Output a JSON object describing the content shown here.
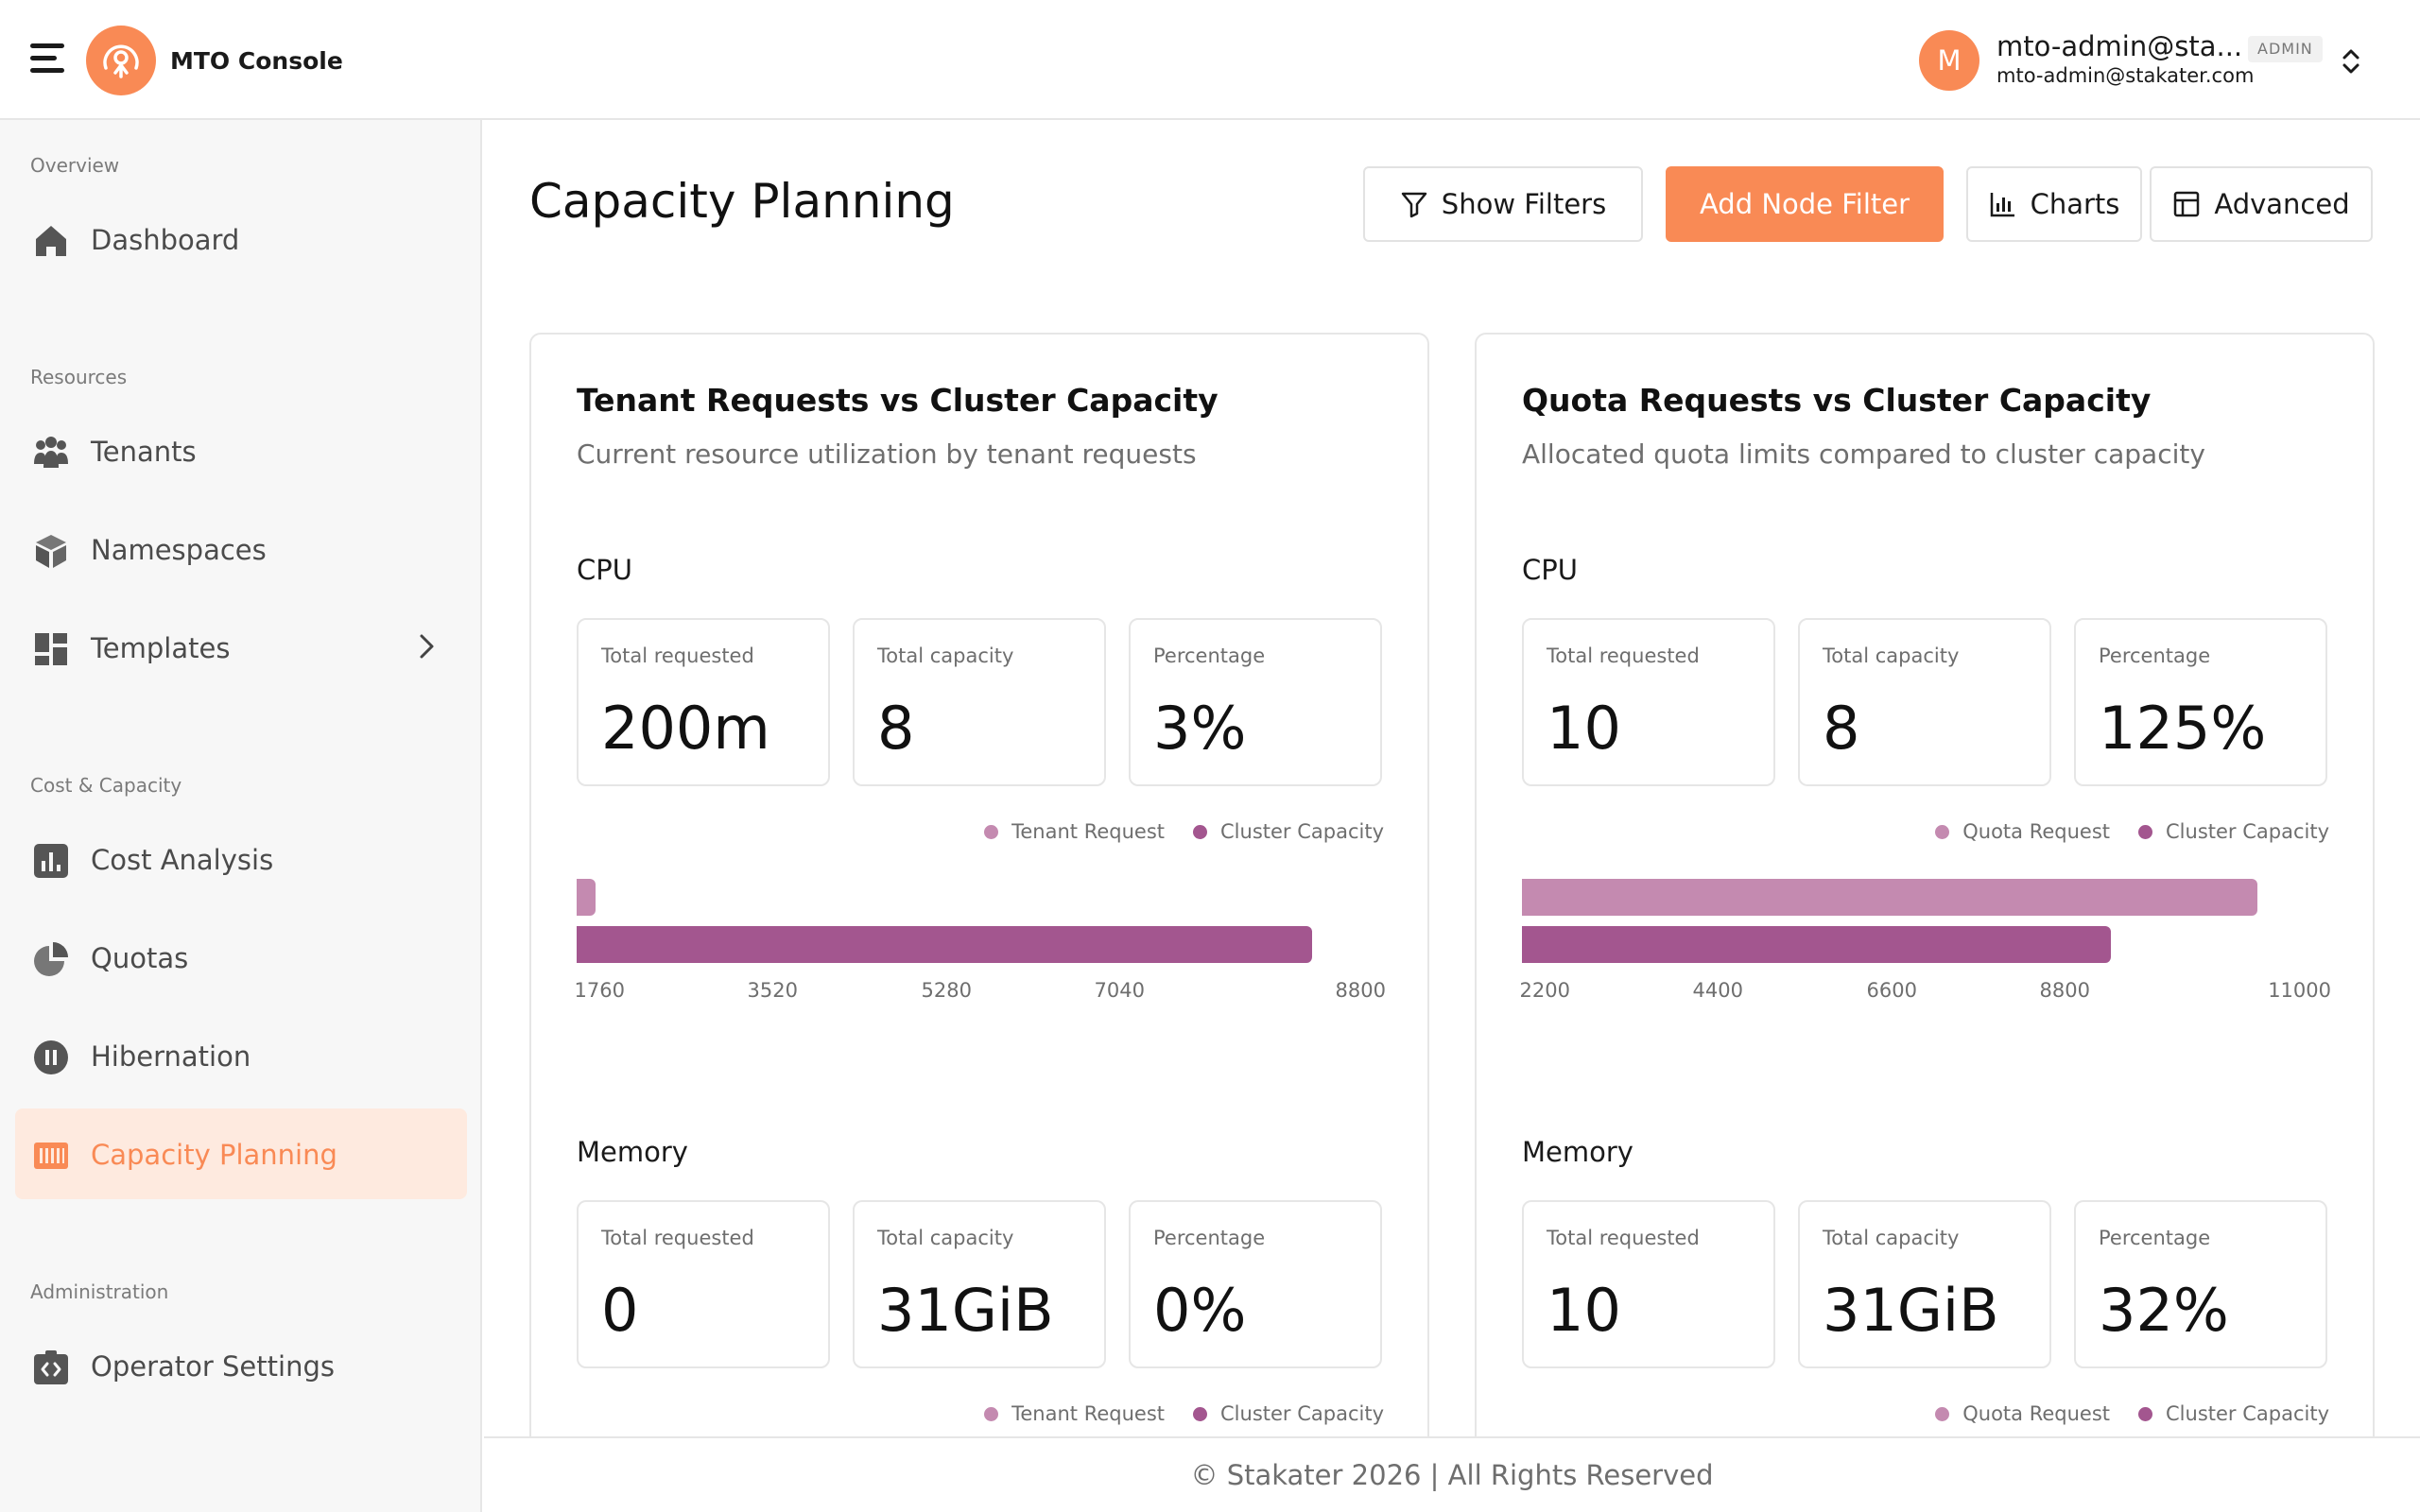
{
  "header": {
    "app_title": "MTO Console",
    "user": {
      "initial": "M",
      "name": "mto-admin@sta...",
      "role": "ADMIN",
      "email": "mto-admin@stakater.com"
    }
  },
  "sidebar": {
    "sections": [
      {
        "label": "Overview",
        "items": [
          {
            "label": "Dashboard",
            "icon": "home-icon"
          }
        ]
      },
      {
        "label": "Resources",
        "items": [
          {
            "label": "Tenants",
            "icon": "users-icon"
          },
          {
            "label": "Namespaces",
            "icon": "cube-icon"
          },
          {
            "label": "Templates",
            "icon": "template-icon",
            "expandable": true
          }
        ]
      },
      {
        "label": "Cost & Capacity",
        "items": [
          {
            "label": "Cost Analysis",
            "icon": "bar-chart-icon"
          },
          {
            "label": "Quotas",
            "icon": "pie-chart-icon"
          },
          {
            "label": "Hibernation",
            "icon": "pause-icon"
          },
          {
            "label": "Capacity Planning",
            "icon": "capacity-icon",
            "active": true
          }
        ]
      },
      {
        "label": "Administration",
        "items": [
          {
            "label": "Operator Settings",
            "icon": "code-settings-icon"
          }
        ]
      }
    ]
  },
  "main": {
    "title": "Capacity Planning",
    "toolbar": {
      "show_filters": "Show Filters",
      "add_node_filter": "Add Node Filter",
      "charts": "Charts",
      "advanced": "Advanced"
    }
  },
  "colors": {
    "accent": "#f98a55",
    "request": "#c48ab0",
    "capacity": "#a3568f"
  },
  "cards": [
    {
      "title": "Tenant Requests vs Cluster Capacity",
      "subtitle": "Current resource utilization by tenant requests",
      "sections": [
        {
          "label": "CPU",
          "stats": [
            {
              "label": "Total requested",
              "value": "200m"
            },
            {
              "label": "Total capacity",
              "value": "8"
            },
            {
              "label": "Percentage",
              "value": "3%"
            }
          ],
          "legend": [
            "Tenant Request",
            "Cluster Capacity"
          ]
        },
        {
          "label": "Memory",
          "stats": [
            {
              "label": "Total requested",
              "value": "0"
            },
            {
              "label": "Total capacity",
              "value": "31GiB"
            },
            {
              "label": "Percentage",
              "value": "0%"
            }
          ],
          "legend": [
            "Tenant Request",
            "Cluster Capacity"
          ]
        }
      ]
    },
    {
      "title": "Quota Requests vs Cluster Capacity",
      "subtitle": "Allocated quota limits compared to cluster capacity",
      "sections": [
        {
          "label": "CPU",
          "stats": [
            {
              "label": "Total requested",
              "value": "10"
            },
            {
              "label": "Total capacity",
              "value": "8"
            },
            {
              "label": "Percentage",
              "value": "125%"
            }
          ],
          "legend": [
            "Quota Request",
            "Cluster Capacity"
          ]
        },
        {
          "label": "Memory",
          "stats": [
            {
              "label": "Total requested",
              "value": "10"
            },
            {
              "label": "Total capacity",
              "value": "31GiB"
            },
            {
              "label": "Percentage",
              "value": "32%"
            }
          ],
          "legend": [
            "Quota Request",
            "Cluster Capacity"
          ]
        }
      ]
    }
  ],
  "chart_data": [
    {
      "type": "bar",
      "orientation": "horizontal",
      "series": [
        {
          "name": "Tenant Request",
          "values": [
            200
          ]
        },
        {
          "name": "Cluster Capacity",
          "values": [
            8000
          ]
        }
      ],
      "xlim": [
        0,
        8800
      ],
      "xticks": [
        "1760",
        "3520",
        "5280",
        "7040",
        "8800"
      ]
    },
    {
      "type": "bar",
      "orientation": "horizontal",
      "series": [
        {
          "name": "Quota Request",
          "values": [
            10000
          ]
        },
        {
          "name": "Cluster Capacity",
          "values": [
            8000
          ]
        }
      ],
      "xlim": [
        0,
        11000
      ],
      "xticks": [
        "2200",
        "4400",
        "6600",
        "8800",
        "11000"
      ]
    }
  ],
  "footer": {
    "text": "© Stakater 2026 | All Rights Reserved"
  }
}
